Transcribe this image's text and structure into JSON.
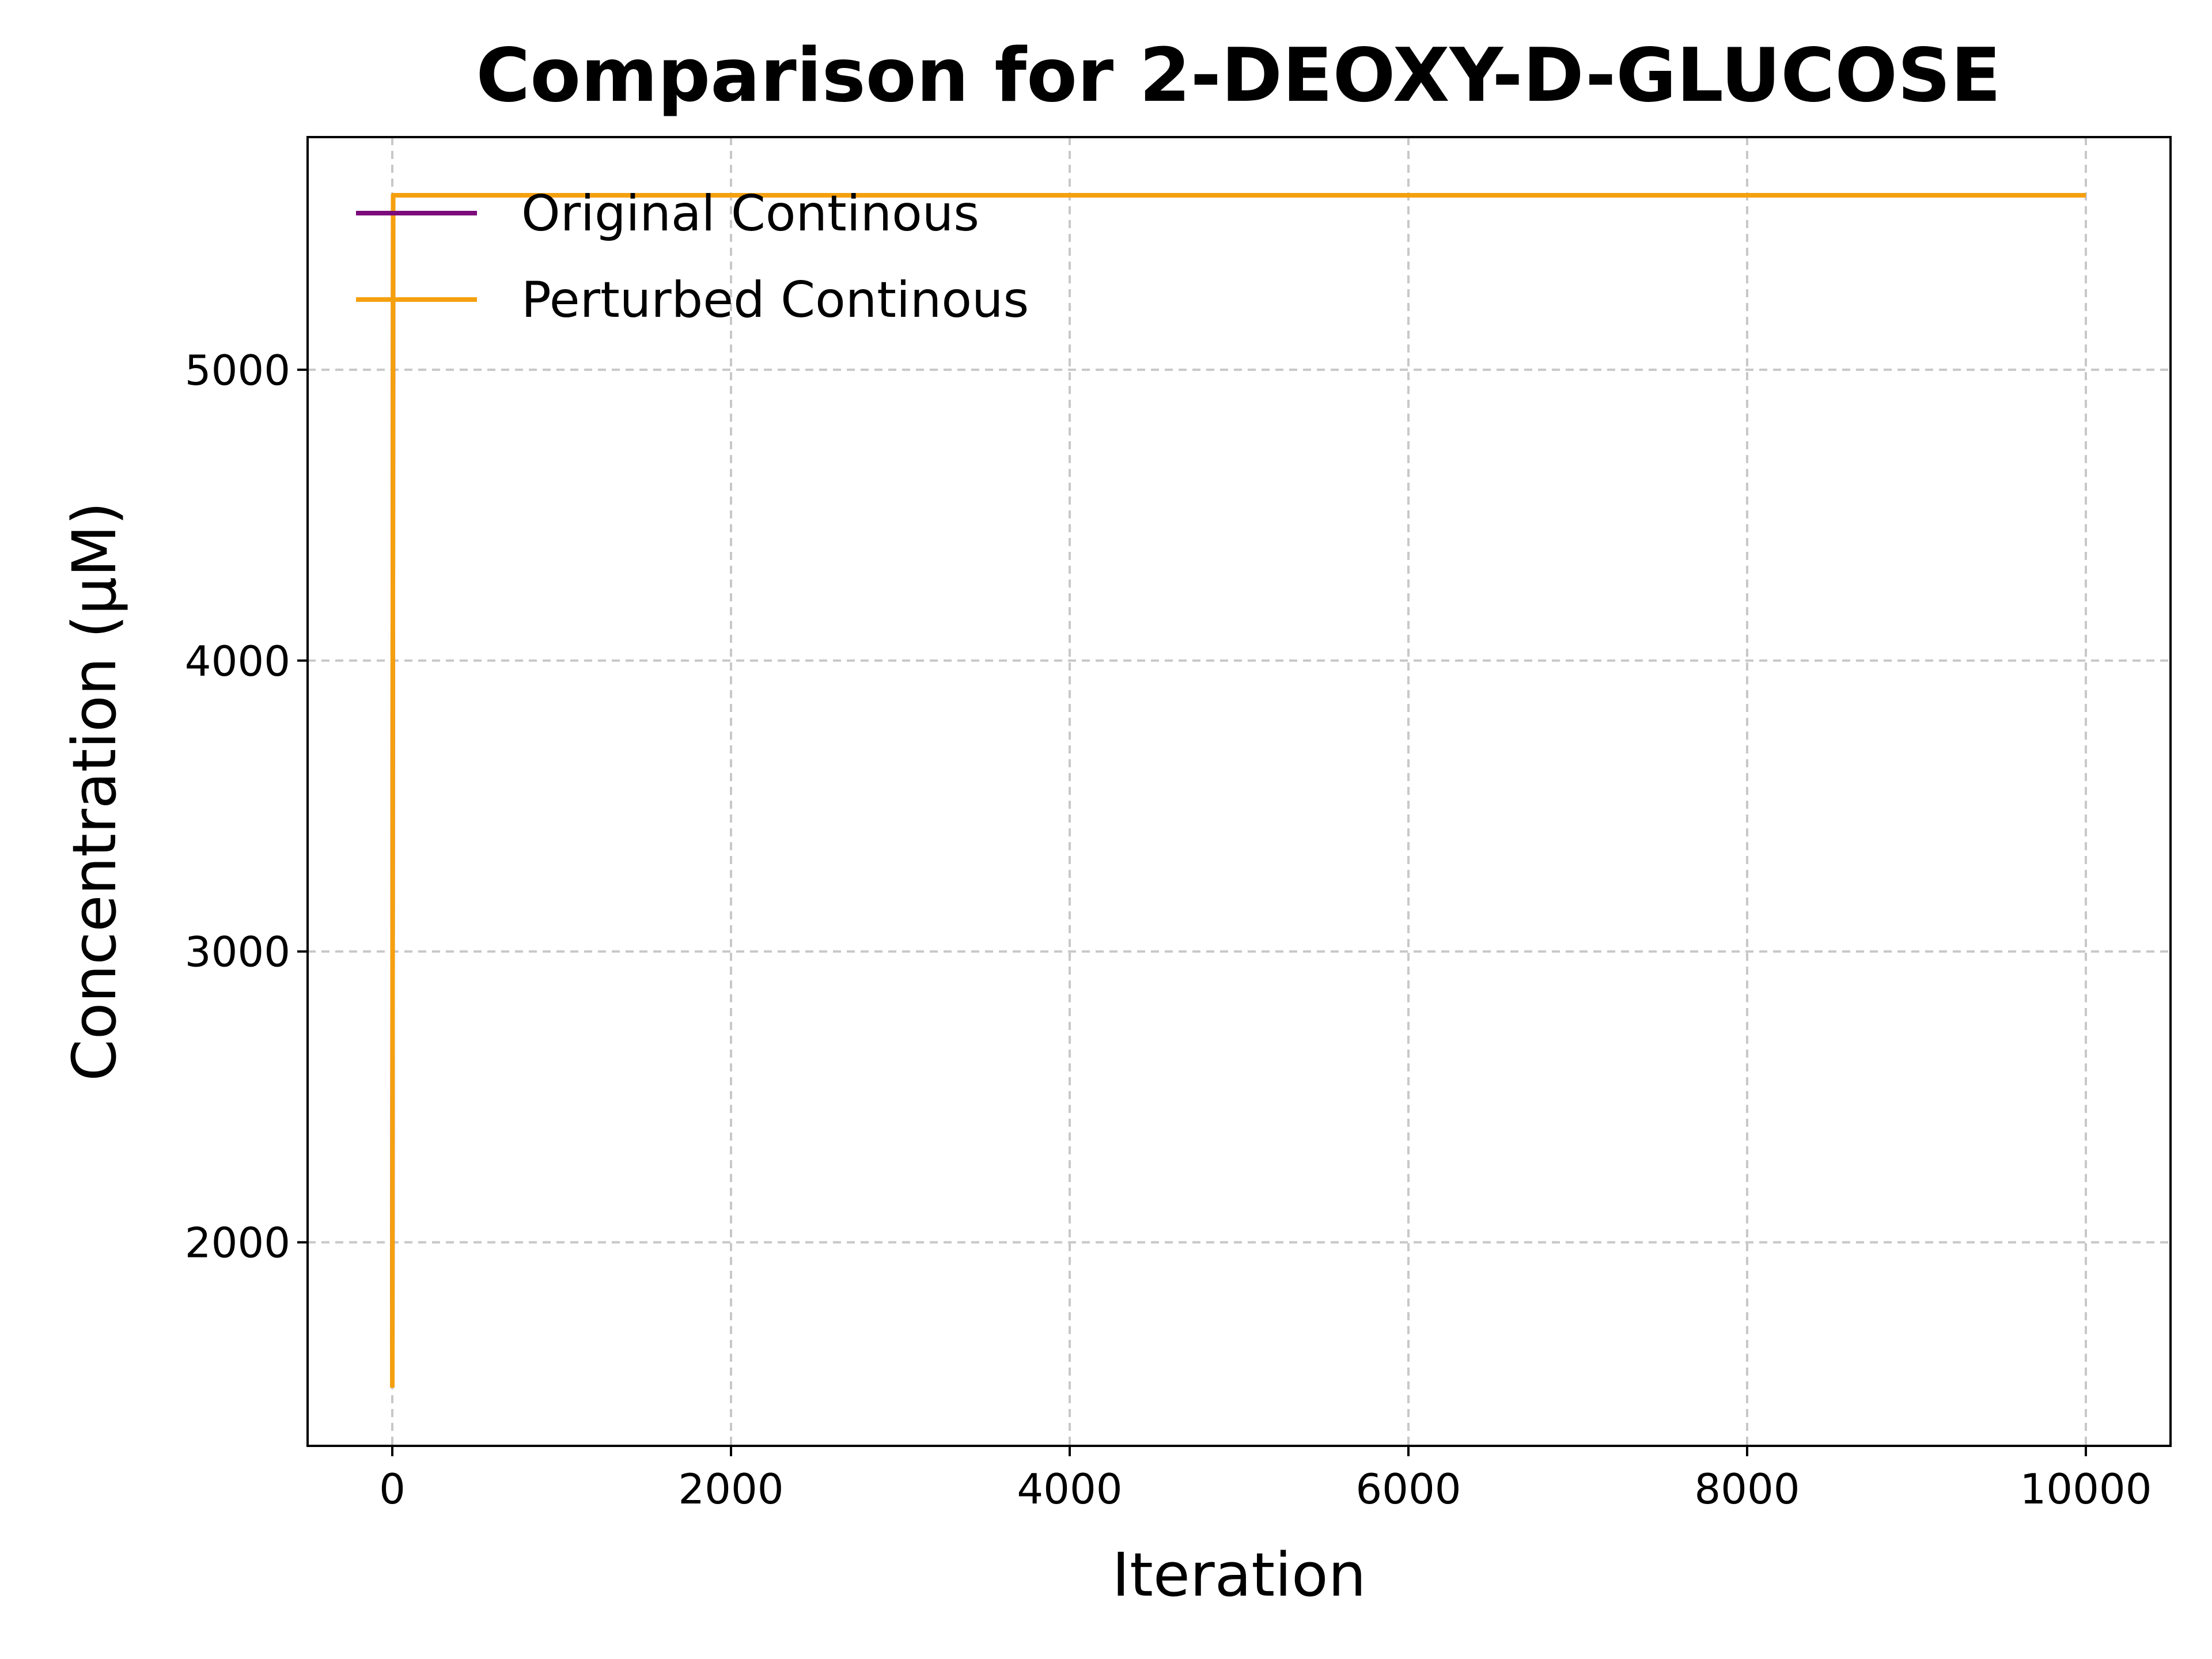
{
  "chart_data": {
    "type": "line",
    "title": "Comparison for 2-DEOXY-D-GLUCOSE",
    "xlabel": "Iteration",
    "ylabel": "Concentration (μM)",
    "xlim": [
      -500,
      10500
    ],
    "ylim": [
      1300,
      5800
    ],
    "xticks": [
      0,
      2000,
      4000,
      6000,
      8000,
      10000
    ],
    "yticks": [
      2000,
      3000,
      4000,
      5000
    ],
    "grid": true,
    "legend_position": "top-left",
    "series": [
      {
        "name": "Original Continous",
        "color": "#7b0a7b",
        "x": [
          0,
          5,
          10000
        ],
        "y": [
          1500,
          5600,
          5600
        ]
      },
      {
        "name": "Perturbed Continous",
        "color": "#f5a00f",
        "x": [
          0,
          5,
          10000
        ],
        "y": [
          1500,
          5600,
          5600
        ]
      }
    ]
  }
}
